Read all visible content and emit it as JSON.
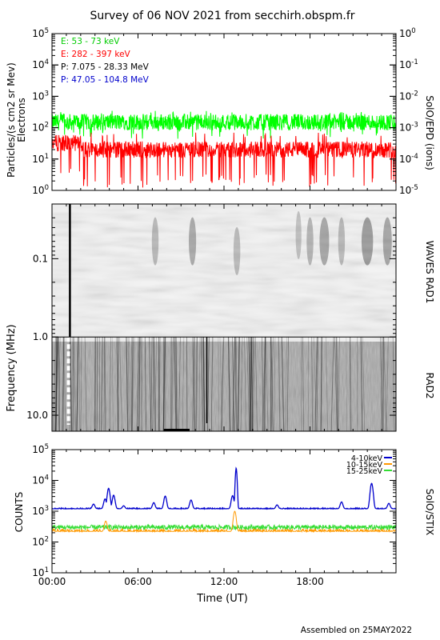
{
  "title": "Survey of 06 NOV 2021 from secchirh.obspm.fr",
  "footer": "Assembled on 25MAY2022",
  "colors": {
    "green": "#00ff00",
    "red": "#ff0000",
    "black": "#000000",
    "blue": "#0000cc",
    "orange": "#ff9900",
    "stix_green": "#33dd33",
    "stix_blue": "#0000cc"
  },
  "chart_data": [
    {
      "type": "line",
      "panel": "epd",
      "ylabel": "Particles/(s cm2 sr Mev)",
      "ylabel2": "Electrons",
      "right_label": "SolO/EPD (ions)",
      "y_log": true,
      "ylim": [
        1,
        100000
      ],
      "y_ticks": [
        "10^0",
        "10^1",
        "10^2",
        "10^3",
        "10^4",
        "10^5"
      ],
      "y2_log": true,
      "y2lim": [
        1e-05,
        1
      ],
      "y2_ticks": [
        "10^-5",
        "10^-4",
        "10^-3",
        "10^-2",
        "10^-1",
        "10^0"
      ],
      "xlim": [
        0,
        24
      ],
      "series": [
        {
          "name": "E: 53 - 73 keV",
          "color": "#00ff00",
          "typical": 150,
          "min": 70,
          "max": 350
        },
        {
          "name": "E: 282 - 397 keV",
          "color": "#ff0000",
          "typical": 20,
          "min": 2,
          "max": 70
        },
        {
          "name": "P: 7.075 - 28.33 MeV",
          "color": "#000000",
          "typical": null
        },
        {
          "name": "P: 47.05 - 104.8 MeV",
          "color": "#0000cc",
          "typical": null
        }
      ]
    },
    {
      "type": "heatmap",
      "panel": "waves",
      "ylabel": "Frequency (MHz)",
      "right_labels": [
        "WAVES RAD1",
        "RAD2"
      ],
      "y_log": true,
      "y_inverted": true,
      "ylim": [
        0.02,
        16
      ],
      "y_ticks": [
        "0.1",
        "1.0",
        "10.0"
      ],
      "xlim": [
        0,
        24
      ]
    },
    {
      "type": "line",
      "panel": "stix",
      "ylabel": "COUNTS",
      "right_label": "SolO/STIX",
      "y_log": true,
      "ylim": [
        10,
        100000
      ],
      "y_ticks": [
        "10^1",
        "10^2",
        "10^3",
        "10^4",
        "10^5"
      ],
      "xlabel": "Time (UT)",
      "x_ticks": [
        "00:00",
        "06:00",
        "12:00",
        "18:00"
      ],
      "xlim": [
        0,
        24
      ],
      "series": [
        {
          "name": "4-10keV",
          "color": "#0000cc",
          "baseline": 1200,
          "peaks": [
            [
              2.9,
              1700
            ],
            [
              3.7,
              2500
            ],
            [
              3.95,
              5500
            ],
            [
              4.3,
              3300
            ],
            [
              5.0,
              1500
            ],
            [
              7.1,
              1900
            ],
            [
              7.9,
              3100
            ],
            [
              9.7,
              2300
            ],
            [
              12.6,
              3200
            ],
            [
              12.85,
              25000
            ],
            [
              15.7,
              1600
            ],
            [
              20.2,
              2000
            ],
            [
              22.3,
              8000
            ],
            [
              23.5,
              1800
            ]
          ]
        },
        {
          "name": "10-15keV",
          "color": "#ff9900",
          "baseline": 220,
          "peaks": [
            [
              3.75,
              480
            ],
            [
              12.75,
              1000
            ]
          ]
        },
        {
          "name": "15-25keV",
          "color": "#33dd33",
          "baseline": 300,
          "peaks": []
        }
      ]
    }
  ]
}
